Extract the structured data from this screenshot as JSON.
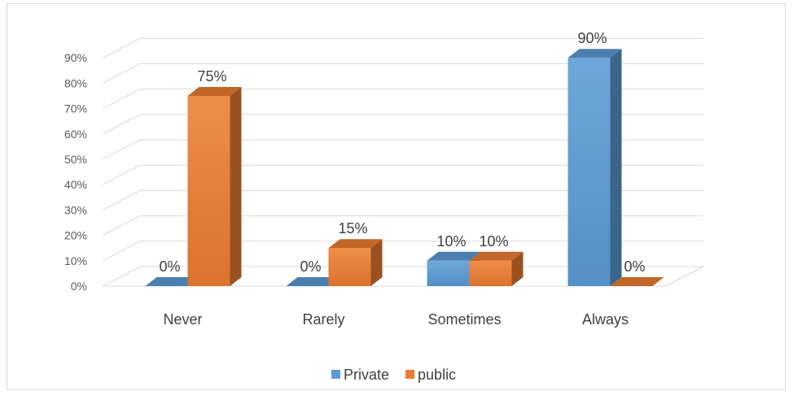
{
  "chart_data": {
    "type": "bar",
    "title": "",
    "xlabel": "",
    "ylabel": "",
    "categories": [
      "Never",
      "Rarely",
      "Sometimes",
      "Always"
    ],
    "series": [
      {
        "name": "Private",
        "values": [
          0,
          0,
          10,
          90
        ],
        "color": "#5b9bd5"
      },
      {
        "name": "public",
        "values": [
          75,
          15,
          10,
          0
        ],
        "color": "#ed7d31"
      }
    ],
    "ylim": [
      0,
      90
    ],
    "yticks": [
      "0%",
      "10%",
      "20%",
      "30%",
      "40%",
      "50%",
      "60%",
      "70%",
      "80%",
      "90%"
    ],
    "value_format": "percent",
    "grid": true,
    "legend": "bottom",
    "style": "3d-column"
  }
}
